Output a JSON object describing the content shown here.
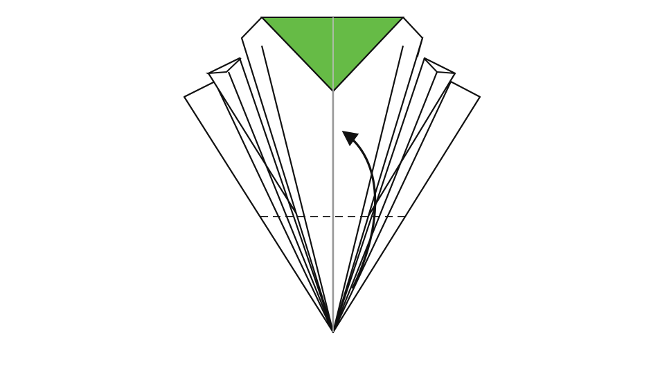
{
  "diagram": {
    "subject": "origami-fold-step",
    "colors": {
      "background": "#ffffff",
      "paper_front": "#ffffff",
      "paper_back": "#66bb46",
      "outline": "#111111",
      "center_crease": "#bdbdbd",
      "fold_line": "#111111",
      "arrow": "#111111"
    },
    "symbols": {
      "fold_line": "valley-fold-dashed-line",
      "arrow": "fold-up-curved-arrow"
    }
  }
}
